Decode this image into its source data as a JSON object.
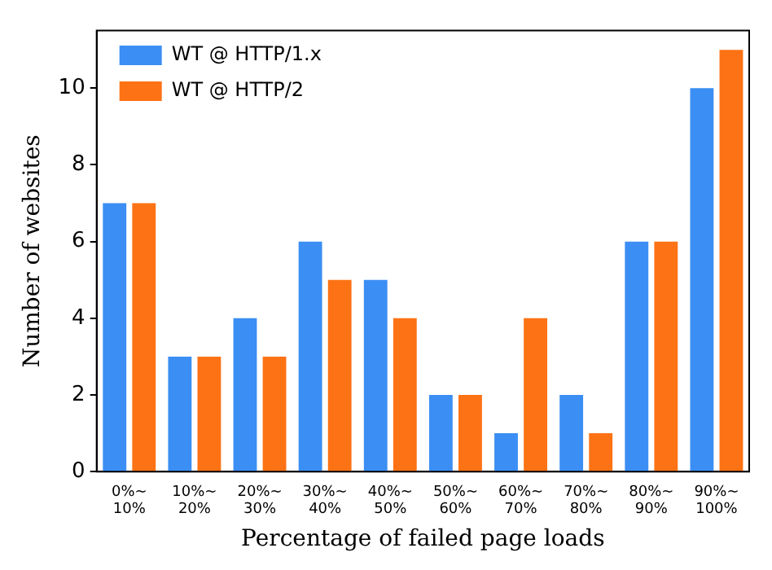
{
  "chart_data": {
    "type": "bar",
    "xlabel": "Percentage of failed page loads",
    "ylabel": "Number of websites",
    "categories": [
      "0%~ 10%",
      "10%~ 20%",
      "20%~ 30%",
      "30%~ 40%",
      "40%~ 50%",
      "50%~ 60%",
      "60%~ 70%",
      "70%~ 80%",
      "80%~ 90%",
      "90%~ 100%"
    ],
    "series": [
      {
        "name": "WT @ HTTP/1.x",
        "color": "#3b8ef3",
        "values": [
          7,
          3,
          4,
          6,
          5,
          2,
          1,
          2,
          6,
          10
        ]
      },
      {
        "name": "WT @ HTTP/2",
        "color": "#fd7214",
        "values": [
          7,
          3,
          3,
          5,
          4,
          2,
          4,
          1,
          6,
          11
        ]
      }
    ],
    "ylim": [
      0,
      11.5
    ],
    "yticks": [
      0,
      2,
      4,
      6,
      8,
      10
    ],
    "grid": false,
    "legend": "top left"
  }
}
